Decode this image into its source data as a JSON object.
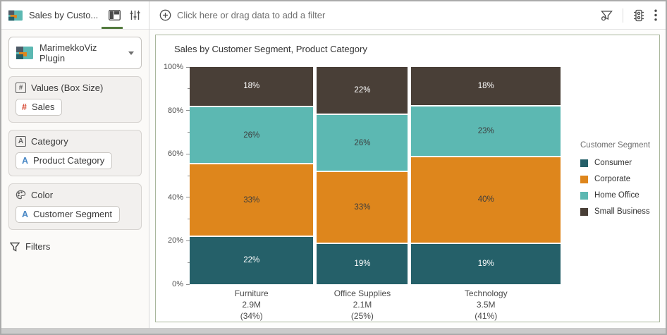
{
  "window": {
    "tab_title": "Sales by Custo..."
  },
  "sidebar": {
    "plugin_selector": {
      "label": "MarimekkoViz Plugin"
    },
    "sections": [
      {
        "header": "Values (Box Size)",
        "header_glyph": "#",
        "pill": {
          "glyph": "#",
          "label": "Sales"
        }
      },
      {
        "header": "Category",
        "header_glyph": "A",
        "pill": {
          "glyph": "A",
          "label": "Product Category"
        }
      },
      {
        "header": "Color",
        "header_glyph": "",
        "pill": {
          "glyph": "A",
          "label": "Customer Segment"
        }
      }
    ],
    "filters_label": "Filters"
  },
  "filter_bar": {
    "label": "Click here or drag data to add a filter"
  },
  "colors": {
    "accent_green": "#527a3d",
    "card_border": "#a9b79c",
    "consumer": "#256069",
    "corporate": "#de861c",
    "home_office": "#5cb8b2",
    "small_business": "#493f37"
  },
  "chart_data": {
    "type": "marimekko",
    "title": "Sales by Customer Segment, Product Category",
    "xlabel": "Product Category",
    "ylabel": "",
    "y_axis": {
      "min": 0,
      "max": 100,
      "major_tick_step": 20,
      "minor_tick_step": 10,
      "tick_labels": [
        "0%",
        "20%",
        "40%",
        "60%",
        "80%",
        "100%"
      ]
    },
    "categories": [
      {
        "label": "Furniture",
        "total": "2.9M",
        "share": "(34%)",
        "width_pct": 34
      },
      {
        "label": "Office Supplies",
        "total": "2.1M",
        "share": "(25%)",
        "width_pct": 25
      },
      {
        "label": "Technology",
        "total": "3.5M",
        "share": "(41%)",
        "width_pct": 41
      }
    ],
    "series": [
      {
        "name": "Consumer",
        "color": "#256069",
        "label_color": "#ffffff",
        "values": [
          22,
          19,
          19
        ]
      },
      {
        "name": "Corporate",
        "color": "#de861c",
        "label_color": "#3d3d3d",
        "values": [
          33,
          33,
          40
        ]
      },
      {
        "name": "Home Office",
        "color": "#5cb8b2",
        "label_color": "#3d3d3d",
        "values": [
          26,
          26,
          23
        ]
      },
      {
        "name": "Small Business",
        "color": "#493f37",
        "label_color": "#ffffff",
        "values": [
          18,
          22,
          18
        ]
      }
    ],
    "stack_order_bottom_to_top": [
      "Consumer",
      "Corporate",
      "Home Office",
      "Small Business"
    ],
    "legend": {
      "title": "Customer Segment",
      "position": "right"
    }
  }
}
